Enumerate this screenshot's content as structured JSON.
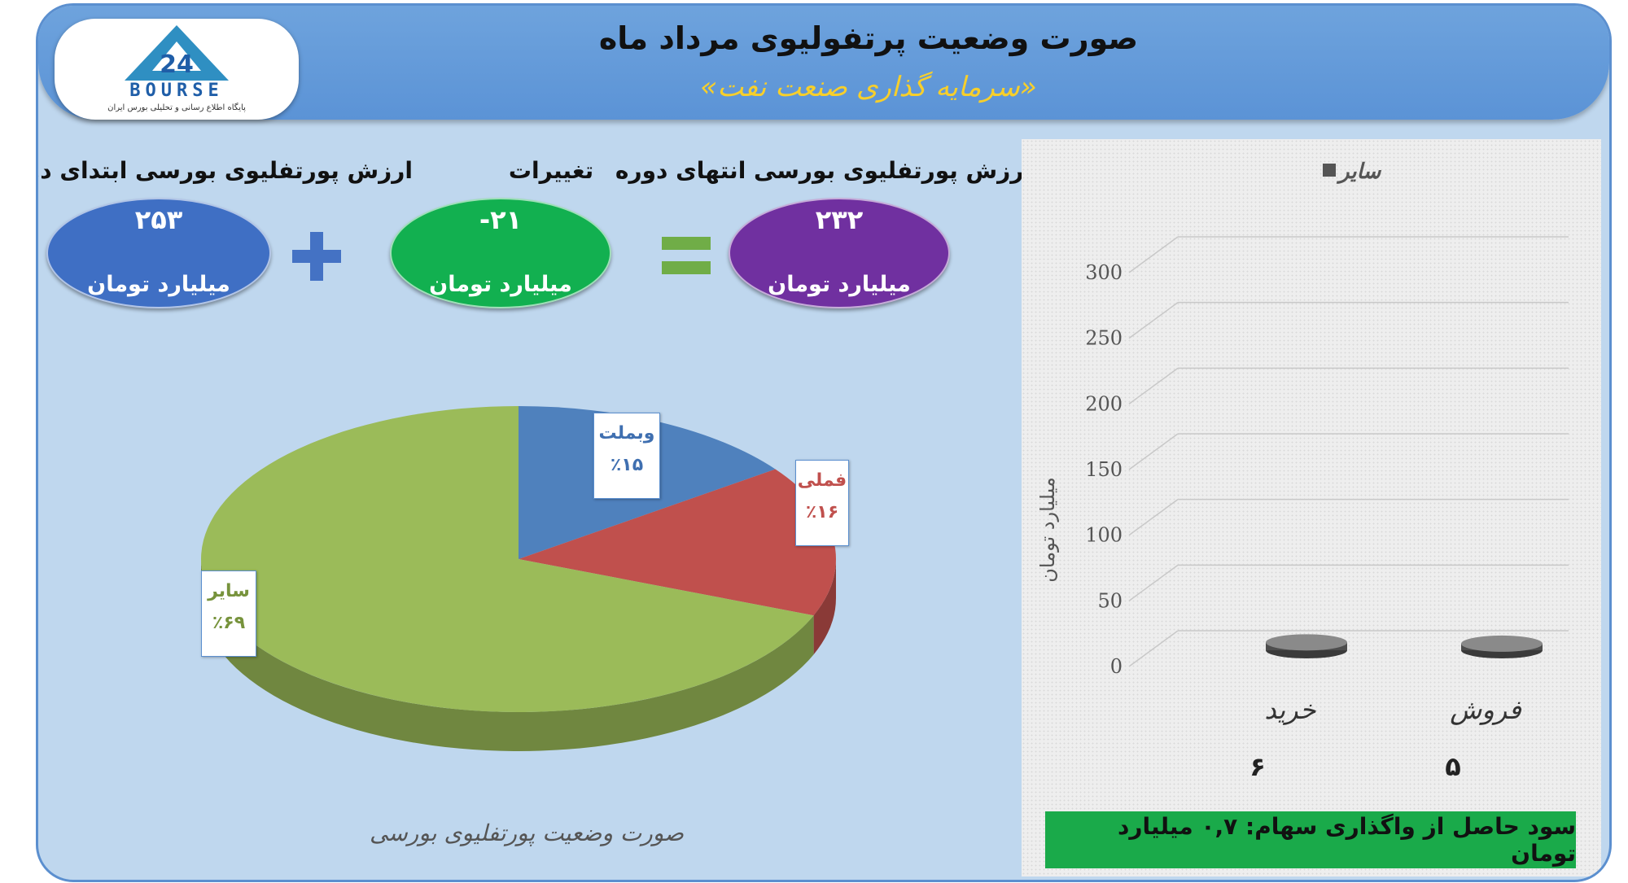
{
  "header": {
    "title": "صورت وضعیت پرتفولیوی مرداد ماه",
    "subtitle": "«سرمایه گذاری صنعت نفت»"
  },
  "logo": {
    "text": "BOURSE",
    "caption": "پایگاه اطلاع رسانی و تحلیلی بورس ایران",
    "icon": "24-triangle-logo"
  },
  "summary": {
    "start": {
      "label": "ارزش پورتفلیوی بورسی ابتدای دوره",
      "value": "۲۵۳",
      "unit": "میلیارد تومان",
      "color": "#3f6fc4"
    },
    "change": {
      "label": "تغییرات",
      "value": "-۲۱",
      "unit": "میلیارد تومان",
      "color": "#12b050"
    },
    "end": {
      "label": "ارزش پورتفلیوی بورسی انتهای دوره",
      "value": "۲۳۲",
      "unit": "میلیارد تومان",
      "color": "#7030a0"
    },
    "plus_color": "#4472c4",
    "equals_color": "#70ad47"
  },
  "chart_data": [
    {
      "type": "pie",
      "title": "صورت وضعیت پورتفلیوی بورسی",
      "slices": [
        {
          "name": "وبملت",
          "value": 15,
          "label": "٪۱۵",
          "color": "#4f81bd"
        },
        {
          "name": "فملی",
          "value": 16,
          "label": "٪۱۶",
          "color": "#c0504d"
        },
        {
          "name": "سایر",
          "value": 69,
          "label": "٪۶۹",
          "color": "#9bbb59"
        }
      ]
    },
    {
      "type": "bar",
      "categories": [
        "خرید",
        "فروش"
      ],
      "series": [
        {
          "name": "سایر",
          "values": [
            6,
            5
          ],
          "color": "#555555"
        }
      ],
      "value_labels": [
        "۶",
        "۵"
      ],
      "ylabel": "میلیارد تومان",
      "ylim": [
        0,
        300
      ],
      "yticks": [
        0,
        50,
        100,
        150,
        200,
        250,
        300
      ],
      "ytick_labels": [
        "0",
        "50",
        "100",
        "150",
        "200",
        "250",
        "300"
      ],
      "grid": true,
      "legend": "top"
    }
  ],
  "profit_note": "سود حاصل از واگذاری سهام: ۰,۷ میلیارد تومان"
}
